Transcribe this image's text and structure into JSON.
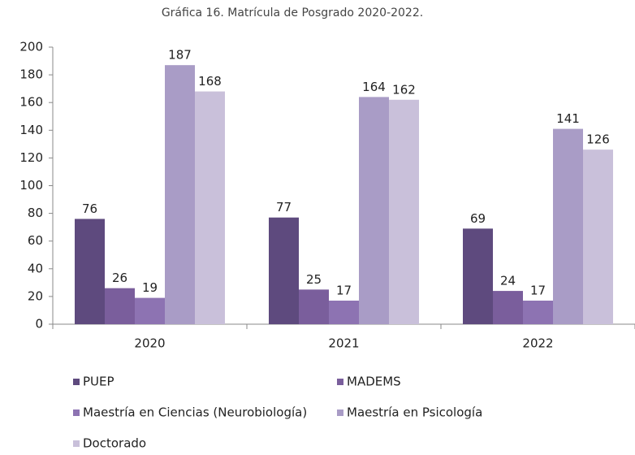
{
  "chart_data": {
    "type": "bar",
    "title": "Gráfica 16. Matrícula de Posgrado 2020-2022.",
    "categories": [
      "2020",
      "2021",
      "2022"
    ],
    "series": [
      {
        "name": "PUEP",
        "color": "#5e4a7e",
        "values": [
          76,
          77,
          69
        ]
      },
      {
        "name": "MADEMS",
        "color": "#7a5e9c",
        "values": [
          26,
          25,
          24
        ]
      },
      {
        "name": "Maestría en Ciencias (Neurobiología)",
        "color": "#8d73b2",
        "values": [
          19,
          17,
          17
        ]
      },
      {
        "name": "Maestría en Psicología",
        "color": "#a99cc6",
        "values": [
          187,
          164,
          141
        ]
      },
      {
        "name": "Doctorado",
        "color": "#c9c0da",
        "values": [
          168,
          162,
          126
        ]
      }
    ],
    "ylim": [
      0,
      200
    ],
    "yticks": [
      0,
      20,
      40,
      60,
      80,
      100,
      120,
      140,
      160,
      180,
      200
    ],
    "legend": "bottom"
  }
}
